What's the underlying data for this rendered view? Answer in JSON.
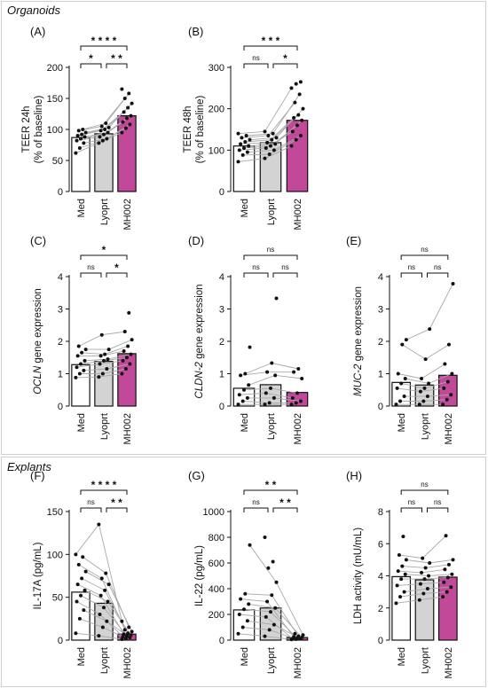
{
  "sections": [
    {
      "id": "organoids",
      "title": "Organoids"
    },
    {
      "id": "explants",
      "title": "Explants"
    }
  ],
  "colors": {
    "med": "#ffffff",
    "lyoprt": "#d3d3d3",
    "mh002": "#c2489a",
    "edge": "#111111",
    "line": "#a8a8a8",
    "dot": "#111111"
  },
  "chart_data": [
    {
      "panel": "(A)",
      "type": "bar",
      "categories": [
        "Med",
        "Lyoprt",
        "MH002"
      ],
      "values": [
        87,
        93,
        122
      ],
      "ylabel": [
        "TEER 24h",
        "(% of baseline)"
      ],
      "ylim": [
        0,
        200
      ],
      "yticks": [
        0,
        50,
        100,
        150,
        200
      ],
      "significance": [
        {
          "from": 0,
          "to": 1,
          "label": "*",
          "level": 1
        },
        {
          "from": 1,
          "to": 2,
          "label": "* *",
          "level": 1
        },
        {
          "from": 0,
          "to": 2,
          "label": "* * * *",
          "level": 2
        }
      ],
      "points": [
        [
          62,
          70,
          78,
          82,
          85,
          88,
          90,
          92,
          95,
          98,
          100
        ],
        [
          78,
          82,
          85,
          88,
          92,
          95,
          98,
          100,
          103,
          105,
          110
        ],
        [
          95,
          102,
          108,
          112,
          118,
          122,
          128,
          135,
          142,
          150,
          158,
          165
        ]
      ]
    },
    {
      "panel": "(B)",
      "type": "bar",
      "categories": [
        "Med",
        "Lyoprt",
        "MH002"
      ],
      "values": [
        110,
        118,
        172
      ],
      "ylabel": [
        "TEER 48h",
        "(% of baseline)"
      ],
      "ylim": [
        0,
        300
      ],
      "yticks": [
        0,
        100,
        200,
        300
      ],
      "significance": [
        {
          "from": 0,
          "to": 1,
          "label": "ns",
          "level": 1
        },
        {
          "from": 1,
          "to": 2,
          "label": "*",
          "level": 1
        },
        {
          "from": 0,
          "to": 2,
          "label": "* * *",
          "level": 2
        }
      ],
      "points": [
        [
          72,
          88,
          95,
          100,
          105,
          110,
          115,
          120,
          125,
          130,
          135,
          140
        ],
        [
          80,
          90,
          100,
          105,
          110,
          115,
          118,
          125,
          130,
          135,
          140,
          145
        ],
        [
          110,
          125,
          135,
          145,
          160,
          172,
          178,
          185,
          200,
          215,
          235,
          250,
          260,
          265
        ]
      ]
    },
    {
      "panel": "(C)",
      "type": "bar",
      "categories": [
        "Med",
        "Lyoprt",
        "MH002"
      ],
      "values": [
        1.28,
        1.38,
        1.62
      ],
      "ylabel": [
        "OCLN gene expression"
      ],
      "ylim": [
        0,
        4
      ],
      "yticks": [
        0,
        1,
        2,
        3,
        4
      ],
      "significance": [
        {
          "from": 0,
          "to": 1,
          "label": "ns",
          "level": 1
        },
        {
          "from": 1,
          "to": 2,
          "label": "*",
          "level": 1
        },
        {
          "from": 0,
          "to": 2,
          "label": "*",
          "level": 2
        }
      ],
      "points": [
        [
          0.88,
          1.0,
          1.1,
          1.2,
          1.3,
          1.4,
          1.55,
          1.65,
          1.75,
          1.85
        ],
        [
          0.9,
          1.0,
          1.15,
          1.3,
          1.4,
          1.45,
          1.55,
          1.6,
          1.75,
          2.2
        ],
        [
          1.0,
          1.15,
          1.3,
          1.4,
          1.5,
          1.6,
          1.7,
          1.85,
          2.05,
          2.3,
          2.88
        ]
      ]
    },
    {
      "panel": "(D)",
      "type": "bar",
      "categories": [
        "Med",
        "Lyoprt",
        "MH002"
      ],
      "values": [
        0.55,
        0.66,
        0.42
      ],
      "ylabel": [
        "CLDN-2 gene expression"
      ],
      "ylim": [
        0,
        4
      ],
      "yticks": [
        0,
        1,
        2,
        3,
        4
      ],
      "significance": [
        {
          "from": 0,
          "to": 1,
          "label": "ns",
          "level": 1
        },
        {
          "from": 1,
          "to": 2,
          "label": "ns",
          "level": 1
        },
        {
          "from": 0,
          "to": 2,
          "label": "ns",
          "level": 2
        }
      ],
      "points": [
        [
          0.05,
          0.15,
          0.25,
          0.35,
          0.5,
          0.65,
          0.95,
          1.0,
          1.82
        ],
        [
          0.05,
          0.1,
          0.25,
          0.4,
          0.55,
          0.95,
          1.05,
          1.33,
          3.33
        ],
        [
          0.05,
          0.1,
          0.15,
          0.25,
          0.4,
          0.85,
          1.05,
          1.15
        ]
      ]
    },
    {
      "panel": "(E)",
      "type": "bar",
      "categories": [
        "Med",
        "Lyoprt",
        "MH002"
      ],
      "values": [
        0.73,
        0.65,
        0.95
      ],
      "ylabel": [
        "MUC-2 gene expression"
      ],
      "ylim": [
        0,
        4
      ],
      "yticks": [
        0,
        1,
        2,
        3,
        4
      ],
      "significance": [
        {
          "from": 0,
          "to": 1,
          "label": "ns",
          "level": 1
        },
        {
          "from": 1,
          "to": 2,
          "label": "ns",
          "level": 1
        },
        {
          "from": 0,
          "to": 2,
          "label": "ns",
          "level": 2
        }
      ],
      "points": [
        [
          0.05,
          0.15,
          0.3,
          0.55,
          0.7,
          0.85,
          1.0,
          1.9,
          2.05
        ],
        [
          0.05,
          0.15,
          0.3,
          0.45,
          0.55,
          0.7,
          0.85,
          1.45,
          2.38
        ],
        [
          0.05,
          0.2,
          0.35,
          0.55,
          0.75,
          1.0,
          1.3,
          1.9,
          3.78
        ]
      ]
    },
    {
      "panel": "(F)",
      "type": "bar",
      "categories": [
        "Med",
        "Lyoprt",
        "MH002"
      ],
      "values": [
        56,
        43,
        7
      ],
      "ylabel": [
        "IL-17A (pg/mL)"
      ],
      "ylim": [
        0,
        150
      ],
      "yticks": [
        0,
        50,
        100,
        150
      ],
      "significance": [
        {
          "from": 0,
          "to": 1,
          "label": "ns",
          "level": 1
        },
        {
          "from": 1,
          "to": 2,
          "label": "* *",
          "level": 1
        },
        {
          "from": 0,
          "to": 2,
          "label": "* * * *",
          "level": 2
        }
      ],
      "points": [
        [
          8,
          25,
          35,
          45,
          52,
          58,
          65,
          72,
          80,
          88,
          97,
          100
        ],
        [
          5,
          15,
          22,
          30,
          38,
          45,
          52,
          58,
          65,
          72,
          78,
          135
        ],
        [
          1,
          2,
          3,
          4,
          5,
          6,
          7,
          8,
          10,
          12,
          15,
          22
        ]
      ]
    },
    {
      "panel": "(G)",
      "type": "bar",
      "categories": [
        "Med",
        "Lyoprt",
        "MH002"
      ],
      "values": [
        235,
        250,
        20
      ],
      "ylabel": [
        "IL-22 (pg/mL)"
      ],
      "ylim": [
        0,
        1000
      ],
      "yticks": [
        0,
        200,
        400,
        600,
        800,
        1000
      ],
      "significance": [
        {
          "from": 0,
          "to": 1,
          "label": "ns",
          "level": 1
        },
        {
          "from": 1,
          "to": 2,
          "label": "* *",
          "level": 1
        },
        {
          "from": 0,
          "to": 2,
          "label": "* *",
          "level": 2
        }
      ],
      "points": [
        [
          50,
          100,
          150,
          200,
          240,
          280,
          320,
          360,
          740
        ],
        [
          30,
          80,
          120,
          180,
          220,
          250,
          300,
          350,
          450,
          560,
          610,
          800
        ],
        [
          5,
          8,
          10,
          12,
          15,
          20,
          25,
          30,
          40,
          50
        ]
      ]
    },
    {
      "panel": "(H)",
      "type": "bar",
      "categories": [
        "Med",
        "Lyoprt",
        "MH002"
      ],
      "values": [
        3.95,
        3.75,
        3.92
      ],
      "ylabel": [
        "LDH activity (mU/mL)"
      ],
      "ylim": [
        0,
        8
      ],
      "yticks": [
        0,
        2,
        4,
        6,
        8
      ],
      "significance": [
        {
          "from": 0,
          "to": 1,
          "label": "ns",
          "level": 1
        },
        {
          "from": 1,
          "to": 2,
          "label": "ns",
          "level": 1
        },
        {
          "from": 0,
          "to": 2,
          "label": "ns",
          "level": 2
        }
      ],
      "points": [
        [
          2.3,
          2.7,
          3.0,
          3.4,
          3.8,
          4.1,
          4.3,
          4.6,
          5.0,
          5.3,
          6.45
        ],
        [
          2.5,
          2.9,
          3.2,
          3.5,
          3.8,
          4.0,
          4.2,
          4.5,
          4.8,
          5.1
        ],
        [
          2.7,
          3.0,
          3.3,
          3.6,
          3.9,
          4.1,
          4.4,
          4.7,
          5.0,
          6.5
        ]
      ]
    }
  ]
}
